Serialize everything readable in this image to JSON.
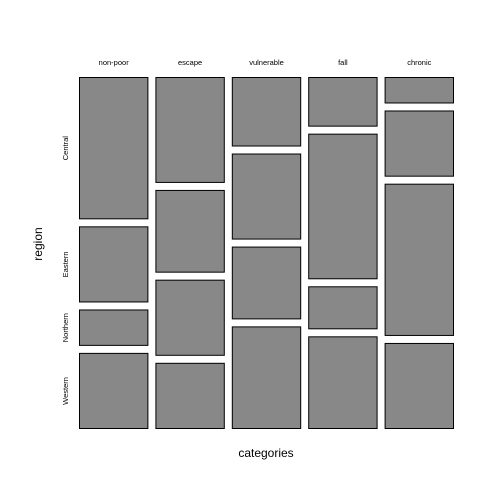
{
  "chart_data": {
    "type": "mosaic",
    "title": "",
    "xlabel": "categories",
    "ylabel": "region",
    "grid": false,
    "colors": {
      "tile_fill": "#888888",
      "tile_stroke": "#000000"
    },
    "categories": [
      "non-poor",
      "escape",
      "vulnerable",
      "fall",
      "chronic"
    ],
    "rows": [
      "Central",
      "Eastern",
      "Northern",
      "Western"
    ],
    "category_proportions": [
      0.2,
      0.2,
      0.2,
      0.2,
      0.2
    ],
    "conditional_proportions": {
      "non-poor": [
        0.43,
        0.23,
        0.11,
        0.23
      ],
      "escape": [
        0.32,
        0.25,
        0.23,
        0.2
      ],
      "vulnerable": [
        0.21,
        0.26,
        0.22,
        0.31
      ],
      "fall": [
        0.15,
        0.44,
        0.13,
        0.28
      ],
      "chronic": [
        0.08,
        0.2,
        0.46,
        0.26
      ]
    }
  }
}
